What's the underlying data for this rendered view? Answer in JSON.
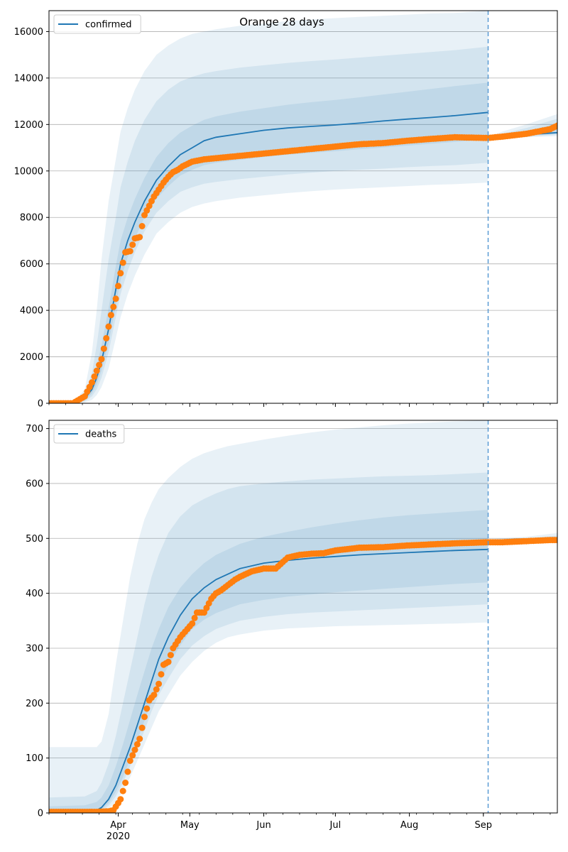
{
  "chart_data": [
    {
      "type": "line",
      "title": "Orange 28 days",
      "legend": {
        "label": "confirmed",
        "placement": "top-left"
      },
      "ylim": [
        0,
        16900
      ],
      "xlim_days": [
        0,
        213
      ],
      "yticks": [
        0,
        2000,
        4000,
        6000,
        8000,
        10000,
        12000,
        14000,
        16000
      ],
      "grid": true,
      "forecast_start_day": 184,
      "model": {
        "days": [
          0,
          10,
          15,
          18,
          20,
          22,
          25,
          28,
          30,
          33,
          36,
          40,
          45,
          50,
          55,
          60,
          65,
          70,
          80,
          90,
          100,
          110,
          120,
          130,
          140,
          150,
          160,
          170,
          184
        ],
        "values": [
          0,
          0,
          200,
          600,
          1100,
          1800,
          3200,
          4900,
          6000,
          7000,
          7800,
          8700,
          9600,
          10200,
          10700,
          11000,
          11300,
          11450,
          11600,
          11750,
          11850,
          11920,
          11980,
          12060,
          12150,
          12230,
          12300,
          12380,
          12520
        ],
        "forecast_days": [
          184,
          190,
          200,
          213
        ],
        "forecast_values": [
          11400,
          11480,
          11560,
          11650
        ],
        "bands": [
          {
            "lower": [
              0,
              0,
              30,
              150,
              350,
              700,
              1500,
              2800,
              3700,
              4700,
              5500,
              6400,
              7300,
              7800,
              8200,
              8450,
              8600,
              8700,
              8850,
              8950,
              9050,
              9130,
              9200,
              9250,
              9300,
              9350,
              9400,
              9430,
              9500
            ],
            "upper": [
              0,
              0,
              600,
              2200,
              4000,
              6200,
              8700,
              10500,
              11700,
              12700,
              13500,
              14300,
              15000,
              15400,
              15700,
              15900,
              16000,
              16100,
              16250,
              16350,
              16450,
              16520,
              16580,
              16630,
              16680,
              16730,
              16780,
              16800,
              16900
            ]
          },
          {
            "lower": [
              0,
              0,
              80,
              300,
              600,
              1100,
              2200,
              3700,
              4700,
              5700,
              6500,
              7400,
              8200,
              8700,
              9100,
              9300,
              9450,
              9530,
              9650,
              9750,
              9850,
              9930,
              10000,
              10050,
              10100,
              10160,
              10210,
              10250,
              10350
            ],
            "upper": [
              0,
              0,
              400,
              1300,
              2500,
              4000,
              6200,
              8000,
              9300,
              10400,
              11300,
              12200,
              13000,
              13500,
              13850,
              14050,
              14200,
              14300,
              14450,
              14550,
              14650,
              14730,
              14800,
              14880,
              14960,
              15040,
              15120,
              15200,
              15350
            ]
          },
          {
            "lower": [
              0,
              0,
              130,
              420,
              820,
              1400,
              2600,
              4200,
              5300,
              6300,
              7100,
              8000,
              8800,
              9350,
              9800,
              10050,
              10250,
              10350,
              10480,
              10600,
              10700,
              10780,
              10850,
              10930,
              11010,
              11090,
              11170,
              11250,
              11350
            ],
            "upper": [
              0,
              0,
              280,
              900,
              1600,
              2500,
              4100,
              5900,
              7000,
              8000,
              8800,
              9700,
              10600,
              11200,
              11650,
              11950,
              12200,
              12350,
              12550,
              12700,
              12850,
              12960,
              13060,
              13170,
              13290,
              13410,
              13530,
              13650,
              13800
            ]
          }
        ],
        "forecast_bands": [
          {
            "lower": [
              11350,
              11400,
              11450,
              11500
            ],
            "upper": [
              11450,
              11700,
              12000,
              12450
            ]
          },
          {
            "lower": [
              11380,
              11420,
              11480,
              11560
            ],
            "upper": [
              11420,
              11600,
              11850,
              12250
            ]
          },
          {
            "lower": [
              11390,
              11440,
              11510,
              11600
            ],
            "upper": [
              11410,
              11540,
              11700,
              12050
            ]
          }
        ]
      },
      "observed": {
        "days": [
          0,
          10,
          15,
          18,
          20,
          22,
          24,
          26,
          28,
          30,
          32,
          34,
          36,
          38,
          40,
          42,
          44,
          46,
          48,
          50,
          52,
          54,
          56,
          60,
          65,
          70,
          80,
          90,
          100,
          110,
          120,
          130,
          140,
          150,
          160,
          170,
          184,
          190,
          200,
          210,
          213
        ],
        "values": [
          0,
          0,
          300,
          900,
          1400,
          1900,
          2800,
          3800,
          4500,
          5600,
          6500,
          6550,
          7100,
          7150,
          8100,
          8500,
          8900,
          9200,
          9500,
          9750,
          9950,
          10050,
          10200,
          10400,
          10500,
          10550,
          10650,
          10750,
          10850,
          10950,
          11050,
          11150,
          11200,
          11300,
          11380,
          11450,
          11420,
          11480,
          11600,
          11800,
          11950
        ]
      }
    },
    {
      "type": "line",
      "title": "",
      "legend": {
        "label": "deaths",
        "placement": "top-left"
      },
      "ylim": [
        0,
        715
      ],
      "xlim_days": [
        0,
        213
      ],
      "yticks": [
        0,
        100,
        200,
        300,
        400,
        500,
        600,
        700
      ],
      "grid": true,
      "forecast_start_day": 184,
      "x_ticks": [
        {
          "label": "Apr",
          "day": 29
        },
        {
          "label": "May",
          "day": 59
        },
        {
          "label": "Jun",
          "day": 90
        },
        {
          "label": "Jul",
          "day": 120
        },
        {
          "label": "Aug",
          "day": 151
        },
        {
          "label": "Sep",
          "day": 182
        }
      ],
      "x_year_label": "2020",
      "model": {
        "days": [
          0,
          15,
          20,
          22,
          25,
          28,
          31,
          34,
          37,
          40,
          43,
          46,
          50,
          55,
          60,
          65,
          70,
          75,
          80,
          90,
          100,
          110,
          120,
          130,
          140,
          150,
          160,
          170,
          184
        ],
        "values": [
          0,
          0,
          5,
          10,
          25,
          50,
          85,
          120,
          160,
          200,
          240,
          280,
          320,
          360,
          390,
          410,
          425,
          435,
          445,
          455,
          460,
          464,
          467,
          470,
          472,
          474,
          476,
          478,
          480
        ],
        "forecast_days": [
          184,
          190,
          200,
          213
        ],
        "forecast_values": [
          494,
          495,
          496,
          497
        ],
        "bands": [
          {
            "lower": [
              0,
              0,
              0,
              2,
              8,
              20,
              40,
              65,
              95,
              125,
              155,
              185,
              215,
              250,
              275,
              295,
              310,
              320,
              325,
              332,
              336,
              338,
              340,
              341,
              342,
              343,
              344,
              345,
              347
            ],
            "upper": [
              120,
              120,
              120,
              130,
              180,
              270,
              350,
              430,
              490,
              535,
              565,
              590,
              610,
              630,
              645,
              655,
              662,
              668,
              672,
              680,
              687,
              693,
              698,
              702,
              706,
              709,
              711,
              713,
              715
            ]
          },
          {
            "lower": [
              0,
              0,
              1,
              4,
              13,
              30,
              55,
              85,
              118,
              150,
              185,
              215,
              245,
              280,
              305,
              322,
              335,
              343,
              350,
              357,
              362,
              365,
              367,
              369,
              371,
              373,
              375,
              377,
              380
            ],
            "upper": [
              28,
              30,
              40,
              55,
              90,
              140,
              200,
              260,
              320,
              380,
              430,
              470,
              510,
              540,
              560,
              572,
              582,
              590,
              595,
              600,
              604,
              607,
              609,
              611,
              613,
              614,
              615,
              617,
              620
            ]
          },
          {
            "lower": [
              0,
              0,
              2,
              6,
              18,
              38,
              65,
              98,
              132,
              168,
              202,
              235,
              268,
              305,
              335,
              352,
              364,
              372,
              380,
              388,
              394,
              398,
              402,
              405,
              408,
              411,
              414,
              417,
              420
            ],
            "upper": [
              12,
              14,
              20,
              28,
              50,
              85,
              125,
              170,
              215,
              258,
              300,
              335,
              375,
              410,
              435,
              455,
              470,
              480,
              490,
              503,
              512,
              520,
              527,
              533,
              538,
              542,
              545,
              548,
              552
            ]
          }
        ],
        "forecast_bands": [
          {
            "lower": [
              490,
              491,
              492,
              494
            ],
            "upper": [
              498,
              500,
              503,
              510
            ]
          },
          {
            "lower": [
              492,
              493,
              494,
              495
            ],
            "upper": [
              496,
              498,
              500,
              505
            ]
          },
          {
            "lower": [
              493,
              494,
              495,
              496
            ],
            "upper": [
              495,
              496,
              498,
              502
            ]
          }
        ]
      },
      "observed": {
        "days": [
          0,
          10,
          20,
          25,
          27,
          29,
          30,
          32,
          34,
          36,
          38,
          40,
          42,
          44,
          46,
          48,
          50,
          52,
          55,
          57,
          60,
          62,
          65,
          68,
          70,
          72,
          75,
          78,
          80,
          85,
          90,
          95,
          100,
          105,
          110,
          115,
          120,
          130,
          140,
          150,
          160,
          170,
          184,
          190,
          200,
          210,
          213
        ],
        "values": [
          2,
          2,
          2,
          3,
          5,
          18,
          25,
          55,
          95,
          115,
          135,
          175,
          205,
          215,
          235,
          270,
          275,
          300,
          320,
          330,
          345,
          365,
          365,
          390,
          400,
          405,
          415,
          425,
          430,
          440,
          445,
          445,
          465,
          470,
          472,
          473,
          478,
          483,
          484,
          487,
          489,
          491,
          493,
          493,
          495,
          497,
          497
        ]
      }
    }
  ]
}
